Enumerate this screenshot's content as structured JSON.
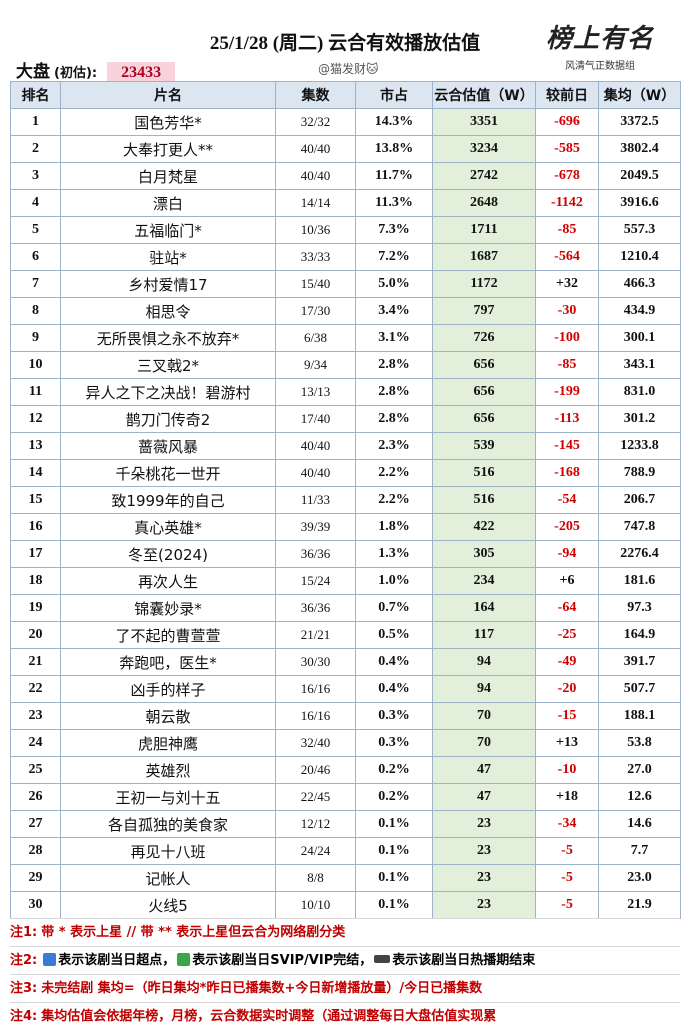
{
  "header": {
    "title": "25/1/28 (周二)  云合有效播放估值",
    "market_label": "大盘",
    "market_note": "(初估):",
    "market_value": "23433",
    "credit": "@猫发财🐱"
  },
  "logo": {
    "title": "榜上有名",
    "subtitle": "风清气正数据组"
  },
  "table": {
    "columns": [
      "排名",
      "片名",
      "集数",
      "市占",
      "云合估值（W）",
      "较前日",
      "集均（W）"
    ],
    "rows": [
      [
        "1",
        "国色芳华*",
        "32/32",
        "14.3%",
        "3351",
        "-696",
        "3372.5"
      ],
      [
        "2",
        "大奉打更人**",
        "40/40",
        "13.8%",
        "3234",
        "-585",
        "3802.4"
      ],
      [
        "3",
        "白月梵星",
        "40/40",
        "11.7%",
        "2742",
        "-678",
        "2049.5"
      ],
      [
        "4",
        "漂白",
        "14/14",
        "11.3%",
        "2648",
        "-1142",
        "3916.6"
      ],
      [
        "5",
        "五福临门*",
        "10/36",
        "7.3%",
        "1711",
        "-85",
        "557.3"
      ],
      [
        "6",
        "驻站*",
        "33/33",
        "7.2%",
        "1687",
        "-564",
        "1210.4"
      ],
      [
        "7",
        "乡村爱情17",
        "15/40",
        "5.0%",
        "1172",
        "+32",
        "466.3"
      ],
      [
        "8",
        "相思令",
        "17/30",
        "3.4%",
        "797",
        "-30",
        "434.9"
      ],
      [
        "9",
        "无所畏惧之永不放弃*",
        "6/38",
        "3.1%",
        "726",
        "-100",
        "300.1"
      ],
      [
        "10",
        "三叉戟2*",
        "9/34",
        "2.8%",
        "656",
        "-85",
        "343.1"
      ],
      [
        "11",
        "异人之下之决战！碧游村",
        "13/13",
        "2.8%",
        "656",
        "-199",
        "831.0"
      ],
      [
        "12",
        "鹊刀门传奇2",
        "17/40",
        "2.8%",
        "656",
        "-113",
        "301.2"
      ],
      [
        "13",
        "蔷薇风暴",
        "40/40",
        "2.3%",
        "539",
        "-145",
        "1233.8"
      ],
      [
        "14",
        "千朵桃花一世开",
        "40/40",
        "2.2%",
        "516",
        "-168",
        "788.9"
      ],
      [
        "15",
        "致1999年的自己",
        "11/33",
        "2.2%",
        "516",
        "-54",
        "206.7"
      ],
      [
        "16",
        "真心英雄*",
        "39/39",
        "1.8%",
        "422",
        "-205",
        "747.8"
      ],
      [
        "17",
        "冬至(2024)",
        "36/36",
        "1.3%",
        "305",
        "-94",
        "2276.4"
      ],
      [
        "18",
        "再次人生",
        "15/24",
        "1.0%",
        "234",
        "+6",
        "181.6"
      ],
      [
        "19",
        "锦囊妙录*",
        "36/36",
        "0.7%",
        "164",
        "-64",
        "97.3"
      ],
      [
        "20",
        "了不起的曹萱萱",
        "21/21",
        "0.5%",
        "117",
        "-25",
        "164.9"
      ],
      [
        "21",
        "奔跑吧，医生*",
        "30/30",
        "0.4%",
        "94",
        "-49",
        "391.7"
      ],
      [
        "22",
        "凶手的样子",
        "16/16",
        "0.4%",
        "94",
        "-20",
        "507.7"
      ],
      [
        "23",
        "朝云散",
        "16/16",
        "0.3%",
        "70",
        "-15",
        "188.1"
      ],
      [
        "24",
        "虎胆神鹰",
        "32/40",
        "0.3%",
        "70",
        "+13",
        "53.8"
      ],
      [
        "25",
        "英雄烈",
        "20/46",
        "0.2%",
        "47",
        "-10",
        "27.0"
      ],
      [
        "26",
        "王初一与刘十五",
        "22/45",
        "0.2%",
        "47",
        "+18",
        "12.6"
      ],
      [
        "27",
        "各自孤独的美食家",
        "12/12",
        "0.1%",
        "23",
        "-34",
        "14.6"
      ],
      [
        "28",
        "再见十八班",
        "24/24",
        "0.1%",
        "23",
        "-5",
        "7.7"
      ],
      [
        "29",
        "记帐人",
        "8/8",
        "0.1%",
        "23",
        "-5",
        "23.0"
      ],
      [
        "30",
        "火线5",
        "10/10",
        "0.1%",
        "23",
        "-5",
        "21.9"
      ]
    ]
  },
  "notes": [
    {
      "label": "注1:",
      "text": "带 * 表示上星 // 带 ** 表示上星但云合为网络剧分类"
    },
    {
      "label": "注2:",
      "parts": [
        "表示该剧当日超点，",
        "表示该剧当日SVIP/VIP完结，",
        "表示该剧当日热播期结束"
      ]
    },
    {
      "label": "注3:",
      "text": "未完结剧 集均=（昨日集均*昨日已播集数+今日新增播放量）/今日已播集数"
    },
    {
      "label": "注4:",
      "text": "集均估值会依据年榜，月榜，云合数据实时调整（通过调整每日大盘估值实现累"
    }
  ]
}
